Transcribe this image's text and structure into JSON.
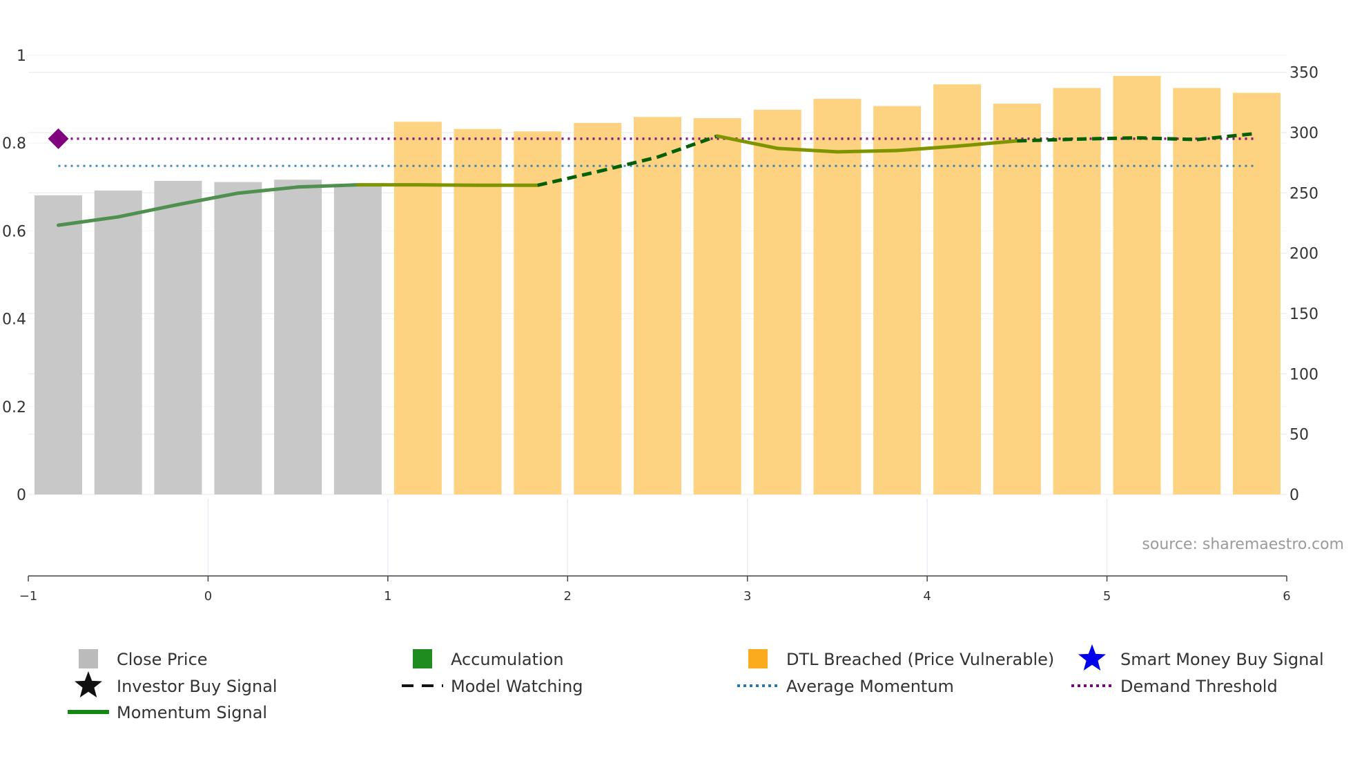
{
  "chart_data": {
    "type": "bar",
    "title": "",
    "xlabel": "",
    "ylabel": "",
    "x_axis": {
      "range": [
        -1,
        6
      ],
      "ticks": [
        -1,
        0,
        1,
        2,
        3,
        4,
        5,
        6
      ],
      "tick_labels": [
        "−1",
        "0",
        "1",
        "2",
        "3",
        "4",
        "5",
        "6"
      ]
    },
    "left_axis": {
      "range": [
        0,
        1
      ],
      "ticks": [
        0,
        0.2,
        0.4,
        0.6,
        0.8,
        1
      ],
      "tick_labels": [
        "0",
        "0.2",
        "0.4",
        "0.6",
        "0.8",
        "1"
      ]
    },
    "right_axis": {
      "range": [
        0,
        365
      ],
      "ticks": [
        0,
        50,
        100,
        150,
        200,
        250,
        300,
        350
      ],
      "tick_labels": [
        "0",
        "50",
        "100",
        "150",
        "200",
        "250",
        "300",
        "350"
      ]
    },
    "bars": {
      "name": "Close Price",
      "axis": "right",
      "x": [
        -0.833,
        -0.5,
        -0.167,
        0.167,
        0.5,
        0.833,
        1.167,
        1.5,
        1.833,
        2.167,
        2.5,
        2.833,
        3.167,
        3.5,
        3.833,
        4.167,
        4.5,
        4.833,
        5.167,
        5.5,
        5.833
      ],
      "values": [
        248,
        252,
        260,
        259,
        261,
        257,
        309,
        303,
        301,
        308,
        313,
        312,
        319,
        328,
        322,
        340,
        324,
        337,
        347,
        337,
        333
      ],
      "states": [
        "neutral",
        "neutral",
        "neutral",
        "neutral",
        "neutral",
        "neutral",
        "dtl",
        "dtl",
        "dtl",
        "dtl",
        "dtl",
        "dtl",
        "dtl",
        "dtl",
        "dtl",
        "dtl",
        "dtl",
        "dtl",
        "dtl",
        "dtl",
        "dtl"
      ]
    },
    "momentum": {
      "name": "Momentum Signal",
      "axis": "left",
      "x": [
        -0.833,
        -0.5,
        -0.167,
        0.167,
        0.5,
        0.833,
        1.167,
        1.5,
        1.833,
        2.167,
        2.5,
        2.833,
        3.167,
        3.5,
        3.833,
        4.167,
        4.5,
        4.833,
        5.167,
        5.5,
        5.833
      ],
      "values": [
        0.613,
        0.632,
        0.66,
        0.686,
        0.7,
        0.705,
        0.705,
        0.704,
        0.704,
        0.735,
        0.768,
        0.816,
        0.788,
        0.78,
        0.783,
        0.793,
        0.805,
        0.809,
        0.812,
        0.808,
        0.822
      ],
      "segments": [
        "green",
        "green",
        "green",
        "green",
        "green",
        "olive",
        "olive",
        "olive",
        "watching",
        "watching",
        "watching",
        "olive",
        "olive",
        "olive",
        "olive",
        "olive",
        "watching",
        "watching",
        "watching",
        "watching"
      ]
    },
    "average_momentum": {
      "name": "Average Momentum",
      "axis": "left",
      "value": 0.748,
      "x_range": [
        -0.833,
        5.833
      ]
    },
    "demand_threshold": {
      "name": "Demand Threshold",
      "axis": "left",
      "value": 0.81,
      "x_range": [
        -0.833,
        5.833
      ]
    },
    "signal_marker": {
      "axis": "left",
      "x": -0.833,
      "value": 0.81
    },
    "watermark": "source: sharemaestro.com",
    "legend": [
      {
        "label": "Close Price",
        "symbol": "square",
        "color": "#bbbbbb"
      },
      {
        "label": "Accumulation",
        "symbol": "square",
        "color": "#1e8c1e"
      },
      {
        "label": "DTL Breached (Price Vulnerable)",
        "symbol": "square",
        "color": "#fbac1e"
      },
      {
        "label": "Smart Money Buy Signal",
        "symbol": "star",
        "color": "#0000ee"
      },
      {
        "label": "Investor Buy Signal",
        "symbol": "star",
        "color": "#111111"
      },
      {
        "label": "Model Watching",
        "symbol": "dash",
        "color": "#111111"
      },
      {
        "label": "Average Momentum",
        "symbol": "dot",
        "color": "#1f77b4"
      },
      {
        "label": "Demand Threshold",
        "symbol": "dot",
        "color": "#7f007f"
      },
      {
        "label": "Momentum Signal",
        "symbol": "line",
        "color": "#138613"
      }
    ],
    "colors": {
      "neutral_bar": "#c8c8c8",
      "dtl_bar": "#fdd280",
      "momentum_green": "#4f8f4f",
      "momentum_olive": "#7f9500",
      "watching": "#036003",
      "marker": "#800080"
    }
  }
}
